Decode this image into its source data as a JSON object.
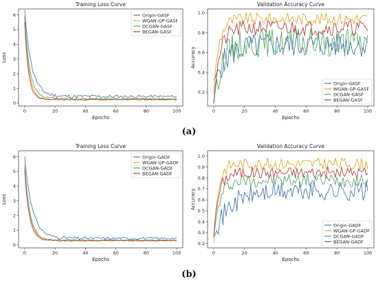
{
  "captions": {
    "a": "(a)",
    "b": "(b)"
  },
  "colors": {
    "Origin": "#4c72b0",
    "WGAN-GP": "#e2a52c",
    "DCGAN": "#55a868",
    "BEGAN": "#b0413e"
  },
  "chart_data": [
    {
      "id": "a-loss",
      "type": "line",
      "title": "Training Loss Curve",
      "xlabel": "Epochs",
      "ylabel": "Loss",
      "xlim": [
        -4,
        104
      ],
      "ylim": [
        -0.2,
        6.4
      ],
      "xticks": [
        0,
        20,
        40,
        60,
        80,
        100
      ],
      "yticks": [
        0,
        1,
        2,
        3,
        4,
        5,
        6
      ],
      "legend": "top-right",
      "grid": false,
      "series": [
        {
          "name": "Origin-GASF",
          "color": "#4c72b0",
          "start": 6.3,
          "tail": 0.45,
          "decay": 0.22,
          "noise": 0.28,
          "seed": 11
        },
        {
          "name": "WGAN-GP-GASF",
          "color": "#e2a52c",
          "start": 5.9,
          "tail": 0.22,
          "decay": 0.35,
          "noise": 0.12,
          "seed": 23
        },
        {
          "name": "DCGAN-GASF",
          "color": "#55a868",
          "start": 5.8,
          "tail": 0.3,
          "decay": 0.3,
          "noise": 0.16,
          "seed": 37
        },
        {
          "name": "BEGAN-GASF",
          "color": "#b0413e",
          "start": 5.5,
          "tail": 0.25,
          "decay": 0.4,
          "noise": 0.1,
          "seed": 41
        }
      ]
    },
    {
      "id": "a-acc",
      "type": "line",
      "title": "Validation Accuracy Curve",
      "xlabel": "Epochs",
      "ylabel": "Accuracy",
      "xlim": [
        -4,
        104
      ],
      "ylim": [
        0.06,
        1.04
      ],
      "xticks": [
        0,
        20,
        40,
        60,
        80,
        100
      ],
      "yticks": [
        0.2,
        0.4,
        0.6,
        0.8,
        1.0
      ],
      "legend": "bottom-right",
      "grid": false,
      "series": [
        {
          "name": "Origin-GASF",
          "color": "#4c72b0",
          "start": 0.3,
          "tail": 0.68,
          "rise": 0.12,
          "noise": 0.16,
          "seed": 5
        },
        {
          "name": "WGAN-GP-GASF",
          "color": "#e2a52c",
          "start": 0.2,
          "tail": 0.94,
          "rise": 0.3,
          "noise": 0.08,
          "seed": 9
        },
        {
          "name": "DCGAN-GASF",
          "color": "#55a868",
          "start": 0.1,
          "tail": 0.7,
          "rise": 0.2,
          "noise": 0.18,
          "seed": 15
        },
        {
          "name": "BEGAN-GASF",
          "color": "#b0413e",
          "start": 0.1,
          "tail": 0.85,
          "rise": 0.25,
          "noise": 0.1,
          "seed": 21
        }
      ]
    },
    {
      "id": "b-loss",
      "type": "line",
      "title": "Training Loss Curve",
      "xlabel": "Epochs",
      "ylabel": "Loss",
      "xlim": [
        -4,
        104
      ],
      "ylim": [
        -0.2,
        6.4
      ],
      "xticks": [
        0,
        20,
        40,
        60,
        80,
        100
      ],
      "yticks": [
        0,
        1,
        2,
        3,
        4,
        5,
        6
      ],
      "legend": "top-right",
      "grid": false,
      "series": [
        {
          "name": "Origin-GADF",
          "color": "#4c72b0",
          "start": 6.0,
          "tail": 0.45,
          "decay": 0.2,
          "noise": 0.22,
          "seed": 31
        },
        {
          "name": "WGAN-GP-GADF",
          "color": "#e2a52c",
          "start": 5.5,
          "tail": 0.28,
          "decay": 0.3,
          "noise": 0.12,
          "seed": 43
        },
        {
          "name": "DCGAN-GADF",
          "color": "#55a868",
          "start": 5.3,
          "tail": 0.32,
          "decay": 0.28,
          "noise": 0.12,
          "seed": 53
        },
        {
          "name": "BEGAN-GADF",
          "color": "#b0413e",
          "start": 5.1,
          "tail": 0.3,
          "decay": 0.33,
          "noise": 0.1,
          "seed": 61
        }
      ]
    },
    {
      "id": "b-acc",
      "type": "line",
      "title": "Validation Accuracy Curve",
      "xlabel": "Epochs",
      "ylabel": "Accuracy",
      "xlim": [
        -4,
        104
      ],
      "ylim": [
        0.16,
        1.05
      ],
      "xticks": [
        0,
        20,
        40,
        60,
        80,
        100
      ],
      "yticks": [
        0.2,
        0.3,
        0.4,
        0.5,
        0.6,
        0.7,
        0.8,
        0.9,
        1.0
      ],
      "legend": "bottom-right",
      "grid": false,
      "series": [
        {
          "name": "Origin-GADF",
          "color": "#4c72b0",
          "start": 0.27,
          "tail": 0.68,
          "rise": 0.1,
          "noise": 0.12,
          "seed": 71
        },
        {
          "name": "WGAN-GP-GADF",
          "color": "#e2a52c",
          "start": 0.22,
          "tail": 0.93,
          "rise": 0.35,
          "noise": 0.07,
          "seed": 83
        },
        {
          "name": "DCGAN-GADF",
          "color": "#55a868",
          "start": 0.25,
          "tail": 0.78,
          "rise": 0.25,
          "noise": 0.08,
          "seed": 97
        },
        {
          "name": "BEGAN-GADF",
          "color": "#b0413e",
          "start": 0.28,
          "tail": 0.85,
          "rise": 0.3,
          "noise": 0.07,
          "seed": 101
        }
      ]
    }
  ]
}
